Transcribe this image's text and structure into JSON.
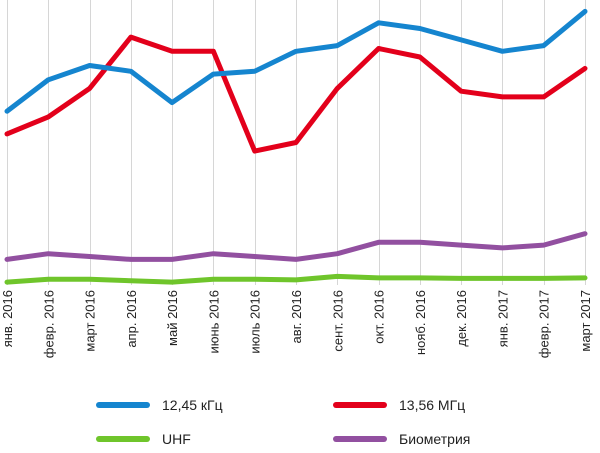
{
  "chart_data": {
    "type": "line",
    "categories": [
      "янв. 2016",
      "февр. 2016",
      "март 2016",
      "апр. 2016",
      "май 2016",
      "июнь 2016",
      "июль 2016",
      "авг. 2016",
      "сент. 2016",
      "окт. 2016",
      "нояб. 2016",
      "дек. 2016",
      "янв. 2017",
      "февр. 2017",
      "март 2017"
    ],
    "grid": "vertical",
    "legend_position": "bottom",
    "y_axis_labels": "none",
    "ylim": [
      0,
      100
    ],
    "series": [
      {
        "name": "12,45 кГц",
        "color": "#1585cf",
        "values": [
          61,
          72,
          77,
          75,
          64,
          74,
          75,
          82,
          84,
          92,
          90,
          86,
          82,
          84,
          96
        ]
      },
      {
        "name": "13,56 МГц",
        "color": "#e3001b",
        "values": [
          53,
          59,
          69,
          87,
          82,
          82,
          47,
          50,
          69,
          83,
          80,
          68,
          66,
          66,
          76
        ]
      },
      {
        "name": "UHF",
        "color": "#6fc52b",
        "values": [
          1,
          2,
          2,
          1.5,
          1,
          2,
          2,
          1.8,
          3,
          2.5,
          2.5,
          2.3,
          2.3,
          2.3,
          2.5
        ]
      },
      {
        "name": "Биометрия",
        "color": "#9250a0",
        "values": [
          9,
          11,
          10,
          9,
          9,
          11,
          10,
          9,
          11,
          15,
          15,
          14,
          13,
          14,
          18
        ]
      }
    ]
  },
  "legend": [
    {
      "label": "12,45 кГц",
      "color": "#1585cf"
    },
    {
      "label": "13,56 МГц",
      "color": "#e3001b"
    },
    {
      "label": "UHF",
      "color": "#6fc52b"
    },
    {
      "label": "Биометрия",
      "color": "#9250a0"
    }
  ]
}
